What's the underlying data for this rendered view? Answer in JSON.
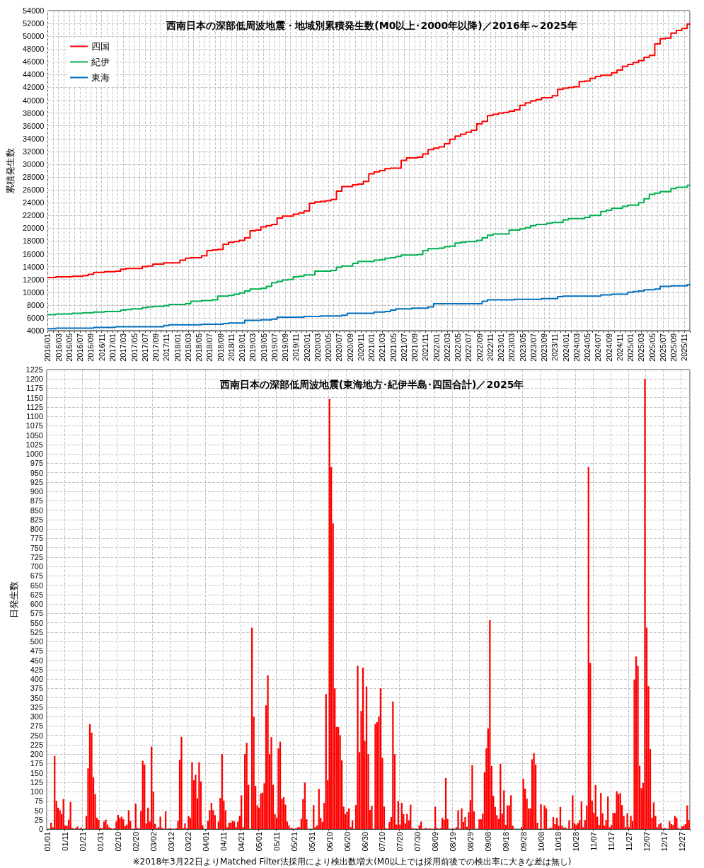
{
  "chart_data": [
    {
      "type": "step",
      "title": "西南日本の深部低周波地震・地域別累積発生数(M0以上･2000年以降)／2016年～2025年",
      "ylabel": "累積発生数",
      "categories": [
        "2016/01",
        null,
        "2016/03",
        null,
        "2016/05",
        null,
        "2016/07",
        null,
        "2016/09",
        null,
        "2016/11",
        null,
        "2017/01",
        null,
        "2017/03",
        null,
        "2017/05",
        null,
        "2017/07",
        null,
        "2017/09",
        null,
        "2017/11",
        null,
        "2018/01",
        null,
        "2018/03",
        null,
        "2018/05",
        null,
        "2018/07",
        null,
        "2018/09",
        null,
        "2018/11",
        null,
        "2019/01",
        null,
        "2019/03",
        null,
        "2019/05",
        null,
        "2019/07",
        null,
        "2019/09",
        null,
        "2019/11",
        null,
        "2020/01",
        null,
        "2020/03",
        null,
        "2020/05",
        null,
        "2020/07",
        null,
        "2020/09",
        null,
        "2020/11",
        null,
        "2021/01",
        null,
        "2021/03",
        null,
        "2021/05",
        null,
        "2021/07",
        null,
        "2021/09",
        null,
        "2021/11",
        null,
        "2022/01",
        null,
        "2022/03",
        null,
        "2022/05",
        null,
        "2022/07",
        null,
        "2022/09",
        null,
        "2022/11",
        null,
        "2023/01",
        null,
        "2023/03",
        null,
        "2023/05",
        null,
        "2023/07",
        null,
        "2023/09",
        null,
        "2023/11",
        null,
        "2024/01",
        null,
        "2024/03",
        null,
        "2024/05",
        null,
        "2024/07",
        null,
        "2024/09",
        null,
        "2024/11",
        null,
        "2025/01",
        null,
        "2025/03",
        null,
        "2025/05",
        null,
        "2025/07",
        null,
        "2025/09",
        null,
        "2025/11",
        null
      ],
      "series": [
        {
          "name": "四国",
          "color": "#ff0000",
          "values": [
            12300,
            12300,
            12400,
            12400,
            12400,
            12500,
            12500,
            12600,
            12800,
            13100,
            13100,
            13200,
            13200,
            13300,
            13600,
            13700,
            13700,
            13700,
            14000,
            14100,
            14400,
            14400,
            14600,
            14600,
            14600,
            15000,
            15300,
            15400,
            15400,
            15700,
            16500,
            16600,
            16700,
            17500,
            17800,
            17900,
            18100,
            18500,
            19600,
            19700,
            20200,
            20400,
            20600,
            21600,
            21900,
            21900,
            22200,
            22400,
            22700,
            23900,
            24100,
            24200,
            24300,
            24500,
            25800,
            26500,
            26500,
            26800,
            26900,
            27300,
            28500,
            28800,
            29000,
            29300,
            29400,
            29400,
            30600,
            31000,
            31000,
            31100,
            31600,
            32300,
            32500,
            32700,
            33200,
            33900,
            34400,
            34700,
            35000,
            35300,
            36300,
            36700,
            37600,
            37800,
            38000,
            38100,
            38300,
            38500,
            39200,
            39600,
            39900,
            40100,
            40400,
            40400,
            40700,
            41700,
            41900,
            42000,
            42100,
            42900,
            43000,
            43400,
            43700,
            43900,
            43900,
            44300,
            44700,
            45300,
            45600,
            45900,
            46200,
            46700,
            47000,
            48800,
            49600,
            49700,
            50500,
            50900,
            51200,
            51900
          ]
        },
        {
          "name": "紀伊",
          "color": "#00b050",
          "values": [
            6500,
            6500,
            6600,
            6600,
            6600,
            6700,
            6700,
            6800,
            6800,
            6900,
            6900,
            7000,
            7000,
            7000,
            7200,
            7300,
            7400,
            7400,
            7600,
            7700,
            7800,
            7800,
            7900,
            8100,
            8100,
            8100,
            8200,
            8600,
            8600,
            8700,
            8700,
            8800,
            9400,
            9400,
            9500,
            9700,
            9900,
            10200,
            10500,
            10500,
            10600,
            10900,
            11500,
            11700,
            11900,
            12000,
            12400,
            12500,
            12700,
            12700,
            13300,
            13300,
            13300,
            13400,
            13900,
            14100,
            14100,
            14500,
            14800,
            14800,
            14800,
            15000,
            15100,
            15300,
            15400,
            15600,
            15800,
            15800,
            15800,
            15900,
            16500,
            16800,
            16800,
            16900,
            17100,
            17200,
            17700,
            17800,
            17900,
            17900,
            18100,
            18500,
            18900,
            19100,
            19100,
            19100,
            19700,
            19700,
            19900,
            20100,
            20400,
            20600,
            20600,
            20800,
            20900,
            20900,
            21300,
            21500,
            21500,
            21500,
            21700,
            22000,
            22000,
            22600,
            22800,
            23100,
            23100,
            23400,
            23600,
            23600,
            24000,
            24600,
            25300,
            25500,
            25700,
            25700,
            26200,
            26400,
            26400,
            26700
          ]
        },
        {
          "name": "東海",
          "color": "#0070c0",
          "values": [
            4300,
            4300,
            4400,
            4400,
            4400,
            4400,
            4400,
            4400,
            4400,
            4500,
            4500,
            4500,
            4500,
            4600,
            4600,
            4600,
            4600,
            4600,
            4600,
            4600,
            4600,
            4600,
            4800,
            4900,
            4900,
            4900,
            4900,
            4900,
            4900,
            5000,
            5000,
            5000,
            5000,
            5100,
            5200,
            5200,
            5200,
            5600,
            5600,
            5600,
            5700,
            5700,
            5800,
            6100,
            6100,
            6100,
            6100,
            6100,
            6200,
            6200,
            6200,
            6300,
            6300,
            6300,
            6300,
            6400,
            6700,
            6700,
            6700,
            6700,
            6700,
            6900,
            6900,
            7000,
            7200,
            7400,
            7400,
            7400,
            7500,
            7500,
            7500,
            7700,
            8200,
            8200,
            8200,
            8200,
            8200,
            8200,
            8200,
            8200,
            8200,
            8600,
            8800,
            8800,
            8800,
            8800,
            8800,
            8900,
            8900,
            8900,
            8900,
            8900,
            9000,
            9000,
            9000,
            9300,
            9400,
            9400,
            9400,
            9400,
            9400,
            9400,
            9400,
            9600,
            9600,
            9700,
            9700,
            9700,
            10000,
            10100,
            10200,
            10400,
            10400,
            10500,
            10900,
            10900,
            11000,
            11000,
            11000,
            11200
          ]
        }
      ],
      "ylim": [
        4000,
        54000
      ],
      "yticks": [
        4000,
        6000,
        8000,
        10000,
        12000,
        14000,
        16000,
        18000,
        20000,
        22000,
        24000,
        26000,
        28000,
        30000,
        32000,
        34000,
        36000,
        38000,
        40000,
        42000,
        44000,
        46000,
        48000,
        50000,
        52000,
        54000
      ],
      "grid": true,
      "legend": "top left",
      "marker": "none"
    },
    {
      "type": "bar",
      "title": "西南日本の深部低周波地震(東海地方･紀伊半島･四国合計)／2025年",
      "ylabel": "日発生数",
      "categories": [
        "01/01",
        null,
        null,
        null,
        null,
        null,
        null,
        null,
        null,
        null,
        "01/11",
        null,
        null,
        null,
        null,
        null,
        null,
        null,
        null,
        null,
        "01/21",
        null,
        null,
        null,
        null,
        null,
        null,
        null,
        null,
        null,
        "01/31",
        null,
        null,
        null,
        null,
        null,
        null,
        null,
        null,
        null,
        "02/10",
        null,
        null,
        null,
        null,
        null,
        null,
        null,
        null,
        null,
        "02/20",
        null,
        null,
        null,
        null,
        null,
        null,
        null,
        null,
        null,
        "03/02",
        null,
        null,
        null,
        null,
        null,
        null,
        null,
        null,
        null,
        "03/12",
        null,
        null,
        null,
        null,
        null,
        null,
        null,
        null,
        null,
        "03/22",
        null,
        null,
        null,
        null,
        null,
        null,
        null,
        null,
        null,
        "04/01",
        null,
        null,
        null,
        null,
        null,
        null,
        null,
        null,
        null,
        "04/11",
        null,
        null,
        null,
        null,
        null,
        null,
        null,
        null,
        null,
        "04/21",
        null,
        null,
        null,
        null,
        null,
        null,
        null,
        null,
        null,
        "05/01",
        null,
        null,
        null,
        null,
        null,
        null,
        null,
        null,
        null,
        "05/11",
        null,
        null,
        null,
        null,
        null,
        null,
        null,
        null,
        null,
        "05/21",
        null,
        null,
        null,
        null,
        null,
        null,
        null,
        null,
        null,
        "05/31",
        null,
        null,
        null,
        null,
        null,
        null,
        null,
        null,
        null,
        "06/10",
        null,
        null,
        null,
        null,
        null,
        null,
        null,
        null,
        null,
        "06/20",
        null,
        null,
        null,
        null,
        null,
        null,
        null,
        null,
        null,
        "06/30",
        null,
        null,
        null,
        null,
        null,
        null,
        null,
        null,
        null,
        "07/10",
        null,
        null,
        null,
        null,
        null,
        null,
        null,
        null,
        null,
        "07/20",
        null,
        null,
        null,
        null,
        null,
        null,
        null,
        null,
        null,
        "07/30",
        null,
        null,
        null,
        null,
        null,
        null,
        null,
        null,
        null,
        "08/09",
        null,
        null,
        null,
        null,
        null,
        null,
        null,
        null,
        null,
        "08/19",
        null,
        null,
        null,
        null,
        null,
        null,
        null,
        null,
        null,
        "08/29",
        null,
        null,
        null,
        null,
        null,
        null,
        null,
        null,
        null,
        "09/08",
        null,
        null,
        null,
        null,
        null,
        null,
        null,
        null,
        null,
        "09/18",
        null,
        null,
        null,
        null,
        null,
        null,
        null,
        null,
        null,
        "09/28",
        null,
        null,
        null,
        null,
        null,
        null,
        null,
        null,
        null,
        "10/08",
        null,
        null,
        null,
        null,
        null,
        null,
        null,
        null,
        null,
        "10/18",
        null,
        null,
        null,
        null,
        null,
        null,
        null,
        null,
        null,
        "10/28",
        null,
        null,
        null,
        null,
        null,
        null,
        null,
        null,
        null,
        "11/07",
        null,
        null,
        null,
        null,
        null,
        null,
        null,
        null,
        null,
        "11/17",
        null,
        null,
        null,
        null,
        null,
        null,
        null,
        null,
        null,
        "11/27",
        null,
        null,
        null,
        null,
        null,
        null,
        null,
        null,
        null,
        "12/07",
        null,
        null,
        null,
        null,
        null,
        null,
        null,
        null,
        null,
        "12/17",
        null,
        null,
        null,
        null,
        null,
        null,
        null,
        null,
        null,
        "12/27",
        null,
        null,
        null,
        null
      ],
      "values": [
        0,
        0,
        17,
        5,
        195,
        75,
        57,
        50,
        40,
        80,
        9,
        9,
        25,
        72,
        3,
        0,
        3,
        7,
        0,
        4,
        0,
        0,
        35,
        162,
        280,
        257,
        138,
        93,
        30,
        25,
        3,
        2,
        20,
        25,
        12,
        5,
        2,
        0,
        2,
        20,
        38,
        30,
        33,
        26,
        8,
        12,
        50,
        22,
        0,
        0,
        68,
        3,
        1,
        48,
        182,
        172,
        15,
        57,
        20,
        220,
        100,
        14,
        2,
        5,
        33,
        3,
        0,
        47,
        0,
        2,
        2,
        0,
        0,
        2,
        22,
        185,
        246,
        2,
        15,
        2,
        35,
        30,
        178,
        130,
        145,
        82,
        178,
        127,
        10,
        0,
        0,
        22,
        50,
        70,
        50,
        37,
        0,
        20,
        83,
        200,
        76,
        50,
        5,
        17,
        17,
        22,
        20,
        5,
        20,
        35,
        90,
        5,
        200,
        230,
        118,
        0,
        537,
        300,
        115,
        63,
        57,
        95,
        97,
        122,
        330,
        410,
        200,
        245,
        118,
        40,
        30,
        215,
        233,
        80,
        85,
        65,
        20,
        10,
        2,
        3,
        0,
        2,
        5,
        5,
        27,
        80,
        124,
        26,
        0,
        0,
        0,
        64,
        5,
        10,
        107,
        30,
        19,
        70,
        360,
        130,
        1147,
        965,
        815,
        375,
        272,
        272,
        250,
        183,
        60,
        40,
        46,
        55,
        5,
        23,
        0,
        64,
        435,
        205,
        315,
        430,
        235,
        380,
        200,
        51,
        62,
        0,
        280,
        285,
        300,
        375,
        190,
        60,
        2,
        0,
        19,
        32,
        340,
        200,
        12,
        75,
        12,
        70,
        40,
        15,
        40,
        23,
        65,
        3,
        0,
        2,
        0,
        10,
        20,
        0,
        2,
        3,
        0,
        2,
        0,
        0,
        60,
        3,
        0,
        2,
        30,
        25,
        136,
        27,
        0,
        0,
        2,
        0,
        5,
        50,
        0,
        55,
        19,
        32,
        6,
        45,
        77,
        170,
        47,
        0,
        0,
        26,
        26,
        41,
        152,
        215,
        268,
        557,
        168,
        89,
        59,
        37,
        27,
        174,
        41,
        103,
        11,
        63,
        63,
        90,
        9,
        0,
        0,
        0,
        0,
        5,
        134,
        108,
        81,
        55,
        55,
        186,
        202,
        172,
        17,
        0,
        66,
        0,
        63,
        55,
        0,
        3,
        3,
        32,
        13,
        30,
        9,
        59,
        9,
        4,
        4,
        0,
        23,
        0,
        90,
        16,
        11,
        16,
        24,
        74,
        5,
        24,
        63,
        965,
        443,
        76,
        43,
        117,
        33,
        11,
        96,
        42,
        9,
        24,
        87,
        5,
        11,
        43,
        43,
        101,
        93,
        96,
        64,
        35,
        5,
        42,
        5,
        35,
        21,
        398,
        460,
        435,
        169,
        109,
        123,
        1200,
        537,
        381,
        213,
        30,
        71,
        35,
        5,
        13,
        16,
        2,
        3,
        2,
        0,
        21,
        13,
        11,
        35,
        30,
        3,
        0,
        7,
        9,
        13,
        63,
        24
      ],
      "color": "#ff0000",
      "ylim": [
        0,
        1225
      ],
      "yticks": [
        0,
        25,
        50,
        75,
        100,
        125,
        150,
        175,
        200,
        225,
        250,
        275,
        300,
        325,
        350,
        375,
        400,
        425,
        450,
        475,
        500,
        525,
        550,
        575,
        600,
        625,
        650,
        675,
        700,
        725,
        750,
        775,
        800,
        825,
        850,
        875,
        900,
        925,
        950,
        975,
        1000,
        1025,
        1050,
        1075,
        1100,
        1125,
        1150,
        1175,
        1200,
        1225
      ],
      "grid": true,
      "annotations": [
        "※2018年3月22日よりMatched Filter法採用により検出数増大(M0以上では採用前後での検出率に大きな差は無し)"
      ]
    }
  ]
}
